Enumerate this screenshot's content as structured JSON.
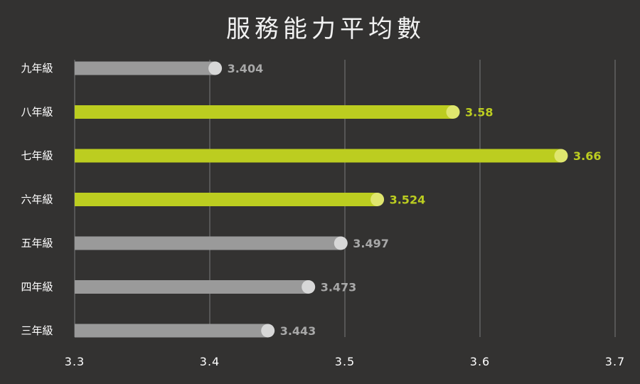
{
  "chart_data": {
    "type": "bar",
    "orientation": "horizontal",
    "title": "服務能力平均數",
    "categories": [
      "九年級",
      "八年級",
      "七年級",
      "六年級",
      "五年級",
      "四年級",
      "三年級"
    ],
    "values": [
      3.404,
      3.58,
      3.66,
      3.524,
      3.497,
      3.473,
      3.443
    ],
    "value_labels": [
      "3.404",
      "3.58",
      "3.66",
      "3.524",
      "3.497",
      "3.473",
      "3.443"
    ],
    "highlighted": [
      false,
      true,
      true,
      true,
      false,
      false,
      false
    ],
    "xlim": [
      3.3,
      3.7
    ],
    "x_ticks": [
      3.3,
      3.4,
      3.5,
      3.6,
      3.7
    ],
    "x_tick_labels": [
      "3.3",
      "3.4",
      "3.5",
      "3.6",
      "3.7"
    ],
    "grid": "vertical",
    "legend": "none"
  },
  "colors": {
    "background": "#333231",
    "highlight_bar": "#bccd20",
    "highlight_dot": "#dfe66e",
    "normal_bar": "#9a9a9a",
    "normal_dot": "#d7d7d7",
    "normal_label": "#a8a8a8",
    "grid": "#7a7a7a",
    "text": "#ffffff"
  }
}
